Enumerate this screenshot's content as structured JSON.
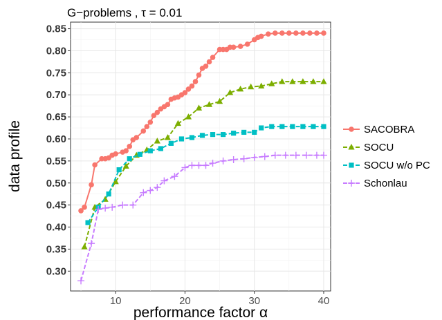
{
  "chart_data": {
    "type": "line",
    "title": "G−problems , τ = 0.01",
    "xlabel": "performance factor α",
    "ylabel": "data profile",
    "xlim": [
      3.5,
      41
    ],
    "ylim": [
      0.255,
      0.865
    ],
    "x_ticks": [
      10,
      20,
      30,
      40
    ],
    "x_tick_labels": [
      "10",
      "20",
      "30",
      "40"
    ],
    "y_ticks": [
      0.3,
      0.35,
      0.4,
      0.45,
      0.5,
      0.55,
      0.6,
      0.65,
      0.7,
      0.75,
      0.8,
      0.85
    ],
    "y_tick_labels": [
      "0.30",
      "0.35",
      "0.40",
      "0.45",
      "0.50",
      "0.55",
      "0.60",
      "0.65",
      "0.70",
      "0.75",
      "0.80",
      "0.85"
    ],
    "grid": true,
    "legend_position": "right",
    "series": [
      {
        "name": "SACOBRA",
        "color": "#F8766D",
        "marker": "circle",
        "linestyle": "solid",
        "points": [
          [
            5,
            0.437
          ],
          [
            5.5,
            0.445
          ],
          [
            6.5,
            0.496
          ],
          [
            7,
            0.541
          ],
          [
            8,
            0.555
          ],
          [
            8.5,
            0.555
          ],
          [
            9,
            0.557
          ],
          [
            9.5,
            0.563
          ],
          [
            10,
            0.566
          ],
          [
            11,
            0.57
          ],
          [
            11.5,
            0.573
          ],
          [
            12,
            0.583
          ],
          [
            12.5,
            0.598
          ],
          [
            13,
            0.603
          ],
          [
            14,
            0.618
          ],
          [
            14.5,
            0.628
          ],
          [
            15,
            0.638
          ],
          [
            15.5,
            0.653
          ],
          [
            16,
            0.66
          ],
          [
            16.5,
            0.668
          ],
          [
            17,
            0.673
          ],
          [
            17.5,
            0.678
          ],
          [
            18,
            0.69
          ],
          [
            18.5,
            0.693
          ],
          [
            19,
            0.695
          ],
          [
            19.5,
            0.7
          ],
          [
            20,
            0.705
          ],
          [
            20.5,
            0.713
          ],
          [
            21,
            0.72
          ],
          [
            21.5,
            0.73
          ],
          [
            22,
            0.745
          ],
          [
            22.5,
            0.76
          ],
          [
            23,
            0.765
          ],
          [
            23.5,
            0.775
          ],
          [
            24,
            0.785
          ],
          [
            25,
            0.803
          ],
          [
            25.5,
            0.803
          ],
          [
            26,
            0.803
          ],
          [
            26.5,
            0.808
          ],
          [
            27,
            0.808
          ],
          [
            28,
            0.81
          ],
          [
            29,
            0.815
          ],
          [
            30,
            0.825
          ],
          [
            30.5,
            0.83
          ],
          [
            31,
            0.833
          ],
          [
            32,
            0.838
          ],
          [
            33,
            0.84
          ],
          [
            34,
            0.84
          ],
          [
            35,
            0.84
          ],
          [
            36,
            0.84
          ],
          [
            37,
            0.84
          ],
          [
            38,
            0.84
          ],
          [
            39,
            0.84
          ],
          [
            40,
            0.84
          ]
        ]
      },
      {
        "name": "SOCU",
        "color": "#7CAE00",
        "marker": "triangle",
        "linestyle": "dashed",
        "points": [
          [
            5.5,
            0.355
          ],
          [
            7,
            0.445
          ],
          [
            8.5,
            0.463
          ],
          [
            10,
            0.503
          ],
          [
            11.5,
            0.538
          ],
          [
            13,
            0.563
          ],
          [
            14.5,
            0.575
          ],
          [
            16,
            0.595
          ],
          [
            17.5,
            0.603
          ],
          [
            19,
            0.635
          ],
          [
            20.5,
            0.65
          ],
          [
            22,
            0.67
          ],
          [
            23.5,
            0.678
          ],
          [
            25,
            0.685
          ],
          [
            26.5,
            0.705
          ],
          [
            28,
            0.713
          ],
          [
            29.5,
            0.718
          ],
          [
            31,
            0.72
          ],
          [
            32.5,
            0.725
          ],
          [
            34,
            0.73
          ],
          [
            35.5,
            0.73
          ],
          [
            37,
            0.73
          ],
          [
            38.5,
            0.73
          ],
          [
            40,
            0.73
          ]
        ]
      },
      {
        "name": "SOCU w/o PC",
        "color": "#00BFC4",
        "marker": "square",
        "linestyle": "dashed",
        "points": [
          [
            6,
            0.41
          ],
          [
            7.5,
            0.445
          ],
          [
            9,
            0.475
          ],
          [
            10.5,
            0.53
          ],
          [
            12,
            0.555
          ],
          [
            13.5,
            0.565
          ],
          [
            15,
            0.573
          ],
          [
            16.5,
            0.578
          ],
          [
            18,
            0.59
          ],
          [
            19.5,
            0.6
          ],
          [
            21,
            0.603
          ],
          [
            22.5,
            0.608
          ],
          [
            24,
            0.61
          ],
          [
            25.5,
            0.61
          ],
          [
            27,
            0.613
          ],
          [
            28.5,
            0.615
          ],
          [
            30,
            0.615
          ],
          [
            31,
            0.625
          ],
          [
            32.5,
            0.628
          ],
          [
            34,
            0.628
          ],
          [
            35.5,
            0.628
          ],
          [
            37,
            0.628
          ],
          [
            38.5,
            0.628
          ],
          [
            40,
            0.628
          ]
        ]
      },
      {
        "name": "Schonlau",
        "color": "#C77CFF",
        "marker": "plus",
        "linestyle": "dashed",
        "points": [
          [
            5,
            0.278
          ],
          [
            6.5,
            0.363
          ],
          [
            7.5,
            0.44
          ],
          [
            8.5,
            0.443
          ],
          [
            9.5,
            0.445
          ],
          [
            11,
            0.45
          ],
          [
            12.5,
            0.45
          ],
          [
            14,
            0.478
          ],
          [
            15,
            0.483
          ],
          [
            16,
            0.49
          ],
          [
            17,
            0.505
          ],
          [
            18.5,
            0.515
          ],
          [
            20,
            0.535
          ],
          [
            21,
            0.54
          ],
          [
            22,
            0.54
          ],
          [
            23,
            0.54
          ],
          [
            24,
            0.545
          ],
          [
            25.5,
            0.55
          ],
          [
            27,
            0.553
          ],
          [
            28.5,
            0.555
          ],
          [
            30,
            0.558
          ],
          [
            31.5,
            0.56
          ],
          [
            33,
            0.563
          ],
          [
            34.5,
            0.563
          ],
          [
            36,
            0.563
          ],
          [
            37.5,
            0.563
          ],
          [
            39,
            0.563
          ],
          [
            40,
            0.563
          ]
        ]
      }
    ]
  }
}
